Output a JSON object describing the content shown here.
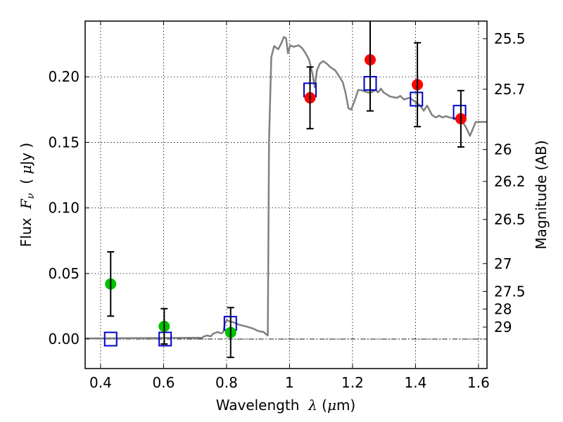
{
  "chart_data": {
    "type": "scatter",
    "title": "",
    "xlabel": "Wavelength  λ (μm)",
    "xlabel_parts": {
      "prefix": "Wavelength  ",
      "symbol": "λ",
      "unit_open": " (",
      "unit_mu": "μ",
      "unit_rest": "m)"
    },
    "ylabel": "Flux  Fν  ( μJy )",
    "ylabel_parts": {
      "prefix": "Flux  ",
      "symbol": "F",
      "subscript": "ν",
      "unit_open": "  ( ",
      "unit_mu": "μ",
      "unit_rest": "Jy )"
    },
    "y2label": "Magnitude (AB)",
    "xlim": [
      0.351,
      1.627
    ],
    "ylim": [
      -0.0225,
      0.2425
    ],
    "grid": true,
    "x_ticks": [
      0.4,
      0.6,
      0.8,
      1.0,
      1.2,
      1.4,
      1.6
    ],
    "x_tick_labels": [
      "0.4",
      "0.6",
      "0.8",
      "1",
      "1.2",
      "1.4",
      "1.6"
    ],
    "y_ticks": [
      0.0,
      0.05,
      0.1,
      0.15,
      0.2
    ],
    "y_tick_labels": [
      "0.00",
      "0.05",
      "0.10",
      "0.15",
      "0.20"
    ],
    "y2_ticks_mag": [
      25.5,
      25.7,
      26,
      26.2,
      26.5,
      27,
      27.5,
      28,
      29
    ],
    "y2_tick_labels": [
      "25.5",
      "25.7",
      "26",
      "26.2",
      "26.5",
      "27",
      "27.5",
      "28",
      "29"
    ],
    "mag_zero_point_ab_ujy": 23.9,
    "reference_line": {
      "y": 0.0,
      "style": "dash-dot",
      "color": "#000000"
    },
    "colors": {
      "model_spectrum": "#808080",
      "model_photometry": "#0000cc",
      "detections_optical": "#00c000",
      "detections_nir": "#ff0000",
      "errorbar": "#000000"
    },
    "series": [
      {
        "name": "model-spectrum",
        "kind": "line",
        "x": [
          0.351,
          0.705,
          0.723,
          0.728,
          0.739,
          0.75,
          0.757,
          0.772,
          0.783,
          0.79,
          0.795,
          0.801,
          0.81,
          0.821,
          0.839,
          0.862,
          0.884,
          0.902,
          0.917,
          0.931,
          0.935,
          0.942,
          0.951,
          0.964,
          0.973,
          0.982,
          0.989,
          0.995,
          1.002,
          1.013,
          1.029,
          1.04,
          1.051,
          1.062,
          1.073,
          1.08,
          1.087,
          1.096,
          1.107,
          1.118,
          1.129,
          1.145,
          1.156,
          1.169,
          1.178,
          1.187,
          1.196,
          1.207,
          1.218,
          1.229,
          1.241,
          1.252,
          1.263,
          1.274,
          1.281,
          1.29,
          1.299,
          1.319,
          1.341,
          1.352,
          1.363,
          1.381,
          1.401,
          1.415,
          1.426,
          1.437,
          1.452,
          1.464,
          1.475,
          1.486,
          1.497,
          1.508,
          1.535,
          1.548,
          1.559,
          1.573,
          1.582,
          1.591,
          1.627
        ],
        "y": [
          0.0005,
          0.001,
          0.001,
          0.002,
          0.0027,
          0.002,
          0.004,
          0.0054,
          0.0043,
          0.0054,
          0.012,
          0.0145,
          0.0134,
          0.0129,
          0.011,
          0.0096,
          0.008,
          0.006,
          0.0054,
          0.0027,
          0.151,
          0.215,
          0.2235,
          0.221,
          0.2251,
          0.2304,
          0.2293,
          0.218,
          0.224,
          0.2229,
          0.224,
          0.2219,
          0.218,
          0.213,
          0.202,
          0.192,
          0.205,
          0.21,
          0.212,
          0.2101,
          0.2075,
          0.205,
          0.201,
          0.196,
          0.1876,
          0.176,
          0.175,
          0.182,
          0.19,
          0.1897,
          0.1886,
          0.188,
          0.1886,
          0.19,
          0.1881,
          0.191,
          0.188,
          0.185,
          0.184,
          0.1854,
          0.1827,
          0.184,
          0.1806,
          0.178,
          0.1742,
          0.178,
          0.171,
          0.169,
          0.1704,
          0.169,
          0.17,
          0.169,
          0.168,
          0.1661,
          0.162,
          0.155,
          0.1602,
          0.1656,
          0.1656
        ]
      },
      {
        "name": "model-photometry",
        "kind": "open-square",
        "x": [
          0.432,
          0.605,
          0.812,
          1.065,
          1.256,
          1.403,
          1.54
        ],
        "y": [
          0.0,
          0.0,
          0.012,
          0.19,
          0.195,
          0.183,
          0.173
        ]
      },
      {
        "name": "optical-photometry",
        "kind": "filled-circle-errorbar",
        "x": [
          0.432,
          0.602,
          0.813
        ],
        "y": [
          0.042,
          0.0097,
          0.005
        ],
        "yerr": [
          0.0245,
          0.0135,
          0.019
        ]
      },
      {
        "name": "nir-photometry",
        "kind": "filled-circle-errorbar",
        "x": [
          1.065,
          1.256,
          1.406,
          1.544
        ],
        "y": [
          0.184,
          0.213,
          0.194,
          0.168
        ],
        "yerr": [
          0.0235,
          0.039,
          0.032,
          0.0215
        ]
      }
    ]
  }
}
